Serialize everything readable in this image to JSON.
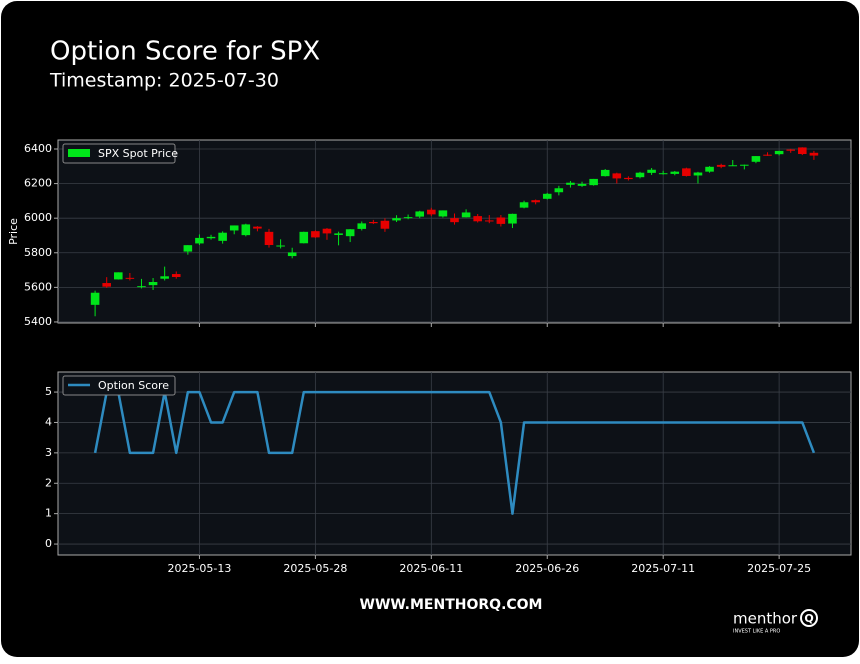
{
  "header": {
    "title": "Option Score for SPX",
    "subtitle": "Timestamp: 2025-07-30"
  },
  "chart_data": [
    {
      "type": "candlestick",
      "ylabel": "Price",
      "xlim": [
        -3.2,
        65.2
      ],
      "ylim": [
        5394,
        6452
      ],
      "xticks": [
        9,
        19,
        29,
        39,
        49,
        59
      ],
      "yticks": [
        5400,
        5600,
        5800,
        6000,
        6200,
        6400
      ],
      "grid": true,
      "legend": "upper left",
      "series": [
        {
          "name": "SPX Spot Price",
          "color": "#00e61a",
          "down_color": "#e60000",
          "open": [
            5499,
            5625,
            5646,
            5655,
            5606,
            5613,
            5650,
            5677,
            5807,
            5854,
            5884,
            5869,
            5929,
            5902,
            5951,
            5921,
            5841,
            5781,
            5855,
            5925,
            5939,
            5903,
            5896,
            5938,
            5978,
            5985,
            5987,
            6004,
            6009,
            6049,
            6010,
            6000,
            6005,
            6012,
            5987,
            6004,
            5969,
            6061,
            6104,
            6112,
            6150,
            6193,
            6187,
            6191,
            6243,
            6259,
            6233,
            6237,
            6262,
            6256,
            6256,
            6288,
            6247,
            6269,
            6308,
            6304,
            6306,
            6326,
            6367,
            6370,
            6397,
            6409,
            6378
          ],
          "high": [
            5581,
            5659,
            5687,
            5683,
            5649,
            5654,
            5720,
            5692,
            5844,
            5906,
            5904,
            5924,
            5958,
            5968,
            5954,
            5938,
            5878,
            5829,
            5922,
            5930,
            5943,
            5922,
            5937,
            5981,
            5990,
            5999,
            6017,
            6021,
            6043,
            6060,
            6045,
            6027,
            6051,
            6024,
            6018,
            6018,
            6026,
            6101,
            6108,
            6146,
            6187,
            6215,
            6211,
            6227,
            6284,
            6263,
            6242,
            6268,
            6290,
            6274,
            6273,
            6292,
            6268,
            6301,
            6315,
            6336,
            6310,
            6359,
            6381,
            6389,
            6401,
            6410,
            6389
          ],
          "low": [
            5433,
            5597,
            5645,
            5640,
            5594,
            5585,
            5640,
            5650,
            5789,
            5845,
            5876,
            5853,
            5907,
            5895,
            5924,
            5830,
            5825,
            5768,
            5854,
            5886,
            5875,
            5843,
            5862,
            5929,
            5966,
            5921,
            5978,
            5994,
            6000,
            6012,
            6004,
            5963,
            6004,
            5975,
            5971,
            5952,
            5943,
            6057,
            6080,
            6108,
            6132,
            6177,
            6181,
            6188,
            6241,
            6201,
            6218,
            6230,
            6250,
            6252,
            6248,
            6241,
            6201,
            6263,
            6289,
            6303,
            6282,
            6318,
            6360,
            6363,
            6378,
            6365,
            6337
          ],
          "close": [
            5569,
            5604,
            5687,
            5650,
            5607,
            5631,
            5664,
            5660,
            5844,
            5886,
            5892,
            5916,
            5958,
            5964,
            5940,
            5845,
            5842,
            5802,
            5921,
            5889,
            5912,
            5912,
            5936,
            5970,
            5971,
            5939,
            6000,
            6006,
            6039,
            6022,
            6045,
            5977,
            6033,
            5982,
            5981,
            5967,
            6025,
            6092,
            6092,
            6141,
            6173,
            6205,
            6198,
            6227,
            6279,
            6230,
            6226,
            6263,
            6280,
            6260,
            6269,
            6244,
            6264,
            6297,
            6297,
            6306,
            6309,
            6359,
            6363,
            6389,
            6390,
            6371,
            6362
          ]
        }
      ]
    },
    {
      "type": "line",
      "xlim": [
        -3.2,
        65.2
      ],
      "ylim": [
        -0.36,
        5.66
      ],
      "xticks": [
        {
          "value": 9,
          "label": "2025-05-13"
        },
        {
          "value": 19,
          "label": "2025-05-28"
        },
        {
          "value": 29,
          "label": "2025-06-11"
        },
        {
          "value": 39,
          "label": "2025-06-26"
        },
        {
          "value": 49,
          "label": "2025-07-11"
        },
        {
          "value": 59,
          "label": "2025-07-25"
        }
      ],
      "yticks": [
        0,
        1,
        2,
        3,
        4,
        5
      ],
      "grid": true,
      "legend": "upper left",
      "series": [
        {
          "name": "Option Score",
          "color": "#2e8bc0",
          "values": [
            3,
            5,
            5,
            3,
            3,
            3,
            5,
            3,
            5,
            5,
            4,
            4,
            5,
            5,
            5,
            3,
            3,
            3,
            5,
            5,
            5,
            5,
            5,
            5,
            5,
            5,
            5,
            5,
            5,
            5,
            5,
            5,
            5,
            5,
            5,
            4,
            1,
            4,
            4,
            4,
            4,
            4,
            4,
            4,
            4,
            4,
            4,
            4,
            4,
            4,
            4,
            4,
            4,
            4,
            4,
            4,
            4,
            4,
            4,
            4,
            4,
            4,
            3
          ]
        }
      ]
    }
  ],
  "footer": {
    "url": "WWW.MENTHORQ.COM",
    "logo": "menthor",
    "logo_mark": "Q",
    "tagline": "INVEST LIKE A PRO"
  }
}
